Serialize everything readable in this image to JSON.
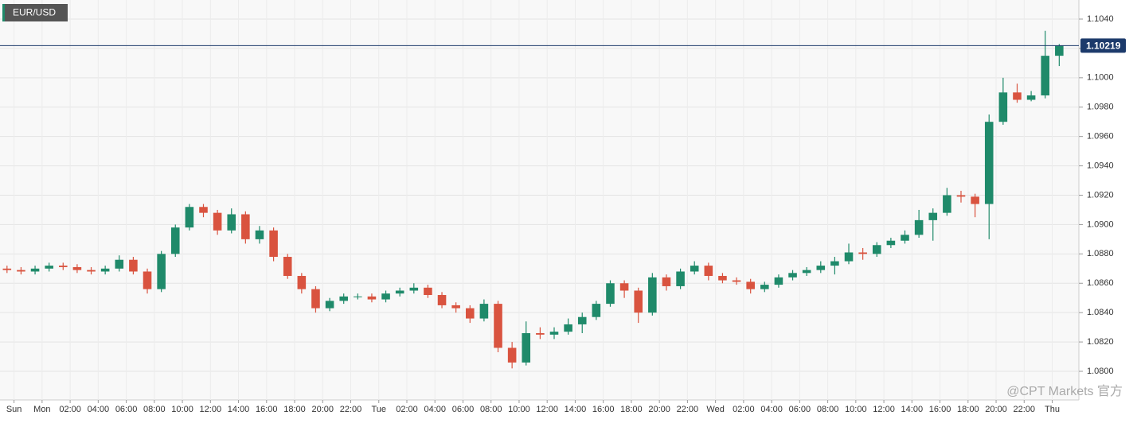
{
  "chart_data": {
    "type": "candlestick",
    "title": "EUR/USD",
    "x": [
      -2.5,
      -1.5,
      -0.5,
      0.5,
      1.5,
      2.5,
      3.5,
      4.5,
      5.5,
      6.5,
      7.5,
      8.5,
      9.5,
      10.5,
      11.5,
      12.5,
      13.5,
      14.5,
      15.5,
      16.5,
      17.5,
      18.5,
      19.5,
      20.5,
      21.5,
      22.5,
      23.5,
      24.5,
      25.5,
      26.5,
      27.5,
      28.5,
      29.5,
      30.5,
      31.5,
      32.5,
      33.5,
      34.5,
      35.5,
      36.5,
      37.5,
      38.5,
      39.5,
      40.5,
      41.5,
      42.5,
      43.5,
      44.5,
      45.5,
      46.5,
      47.5,
      48.5,
      49.5,
      50.5,
      51.5,
      52.5,
      53.5,
      54.5,
      55.5,
      56.5,
      57.5,
      58.5,
      59.5,
      60.5,
      61.5,
      62.5,
      63.5,
      64.5,
      65.5,
      66.5,
      67.5,
      68.5,
      69.5,
      70.5,
      71.5,
      72.5
    ],
    "open": [
      1.087,
      1.0869,
      1.0868,
      1.087,
      1.0872,
      1.0871,
      1.0869,
      1.0868,
      1.087,
      1.0876,
      1.0868,
      1.0856,
      1.088,
      1.0898,
      1.0912,
      1.0908,
      1.0896,
      1.0907,
      1.089,
      1.0896,
      1.0878,
      1.0865,
      1.0856,
      1.0843,
      1.0848,
      1.0851,
      1.0851,
      1.0849,
      1.0853,
      1.0855,
      1.0857,
      1.0852,
      1.0845,
      1.0843,
      1.0836,
      1.0846,
      1.0816,
      1.0806,
      1.0826,
      1.0825,
      1.0827,
      1.0832,
      1.0837,
      1.0846,
      1.086,
      1.0855,
      1.084,
      1.0864,
      1.0858,
      1.0868,
      1.0872,
      1.0865,
      1.0862,
      1.0861,
      1.0856,
      1.0859,
      1.0864,
      1.0867,
      1.0869,
      1.0872,
      1.0875,
      1.0881,
      1.088,
      1.0886,
      1.0889,
      1.0893,
      1.0903,
      1.0908,
      1.092,
      1.0919,
      1.0914,
      1.097,
      1.099,
      1.0985,
      1.0988,
      1.1015
    ],
    "high": [
      1.0872,
      1.0871,
      1.0872,
      1.0874,
      1.0874,
      1.0873,
      1.0871,
      1.0872,
      1.0879,
      1.0878,
      1.087,
      1.0882,
      1.09,
      1.0914,
      1.0914,
      1.091,
      1.0911,
      1.0909,
      1.0899,
      1.0898,
      1.088,
      1.0867,
      1.0858,
      1.085,
      1.0853,
      1.0853,
      1.0853,
      1.0855,
      1.0857,
      1.086,
      1.0859,
      1.0854,
      1.0847,
      1.0845,
      1.0849,
      1.0848,
      1.082,
      1.0834,
      1.083,
      1.083,
      1.0836,
      1.084,
      1.0848,
      1.0862,
      1.0862,
      1.0857,
      1.0867,
      1.0866,
      1.087,
      1.0875,
      1.0874,
      1.0867,
      1.0864,
      1.0863,
      1.0861,
      1.0866,
      1.0869,
      1.0871,
      1.0875,
      1.0878,
      1.0887,
      1.0884,
      1.0888,
      1.0891,
      1.0896,
      1.091,
      1.0911,
      1.0925,
      1.0923,
      1.0921,
      1.0975,
      1.1,
      1.0996,
      1.0991,
      1.1032,
      1.1023
    ],
    "low": [
      1.0867,
      1.0866,
      1.0866,
      1.0868,
      1.0869,
      1.0867,
      1.0866,
      1.0866,
      1.0868,
      1.0866,
      1.0853,
      1.0854,
      1.0878,
      1.0896,
      1.0905,
      1.0893,
      1.0894,
      1.0887,
      1.0887,
      1.0875,
      1.0863,
      1.0853,
      1.084,
      1.0841,
      1.0846,
      1.0849,
      1.0847,
      1.0847,
      1.0851,
      1.0853,
      1.085,
      1.0843,
      1.084,
      1.0833,
      1.0834,
      1.0813,
      1.0802,
      1.0804,
      1.0822,
      1.0822,
      1.0825,
      1.0826,
      1.0835,
      1.0844,
      1.085,
      1.0833,
      1.0838,
      1.0855,
      1.0856,
      1.0866,
      1.0862,
      1.086,
      1.0859,
      1.0853,
      1.0854,
      1.0857,
      1.0862,
      1.0865,
      1.0867,
      1.0866,
      1.0873,
      1.0876,
      1.0878,
      1.0884,
      1.0887,
      1.0891,
      1.0889,
      1.0906,
      1.0915,
      1.0905,
      1.089,
      1.0968,
      1.0983,
      1.0984,
      1.0986,
      1.1008
    ],
    "close": [
      1.0869,
      1.0868,
      1.087,
      1.0872,
      1.0871,
      1.0869,
      1.0868,
      1.087,
      1.0876,
      1.0868,
      1.0856,
      1.088,
      1.0898,
      1.0912,
      1.0908,
      1.0896,
      1.0907,
      1.089,
      1.0896,
      1.0878,
      1.0865,
      1.0856,
      1.0843,
      1.0848,
      1.0851,
      1.0851,
      1.0849,
      1.0853,
      1.0855,
      1.0857,
      1.0852,
      1.0845,
      1.0843,
      1.0836,
      1.0846,
      1.0816,
      1.0806,
      1.0826,
      1.0825,
      1.0827,
      1.0832,
      1.0837,
      1.0846,
      1.086,
      1.0855,
      1.084,
      1.0864,
      1.0858,
      1.0868,
      1.0872,
      1.0865,
      1.0862,
      1.0861,
      1.0856,
      1.0859,
      1.0864,
      1.0867,
      1.0869,
      1.0872,
      1.0875,
      1.0881,
      1.088,
      1.0886,
      1.0889,
      1.0893,
      1.0903,
      1.0908,
      1.092,
      1.0919,
      1.0914,
      1.097,
      1.099,
      1.0985,
      1.0988,
      1.1015,
      1.10219
    ],
    "up_color": "#1f8a6a",
    "down_color": "#d9533f",
    "xlim": [
      -3,
      73.9
    ],
    "ylim": [
      1.07805,
      1.1053
    ],
    "xticks": [
      {
        "value": -2,
        "label": "Sun"
      },
      {
        "value": 0,
        "label": "Mon"
      },
      {
        "value": 2,
        "label": "02:00"
      },
      {
        "value": 4,
        "label": "04:00"
      },
      {
        "value": 6,
        "label": "06:00"
      },
      {
        "value": 8,
        "label": "08:00"
      },
      {
        "value": 10,
        "label": "10:00"
      },
      {
        "value": 12,
        "label": "12:00"
      },
      {
        "value": 14,
        "label": "14:00"
      },
      {
        "value": 16,
        "label": "16:00"
      },
      {
        "value": 18,
        "label": "18:00"
      },
      {
        "value": 20,
        "label": "20:00"
      },
      {
        "value": 22,
        "label": "22:00"
      },
      {
        "value": 24,
        "label": "Tue"
      },
      {
        "value": 26,
        "label": "02:00"
      },
      {
        "value": 28,
        "label": "04:00"
      },
      {
        "value": 30,
        "label": "06:00"
      },
      {
        "value": 32,
        "label": "08:00"
      },
      {
        "value": 34,
        "label": "10:00"
      },
      {
        "value": 36,
        "label": "12:00"
      },
      {
        "value": 38,
        "label": "14:00"
      },
      {
        "value": 40,
        "label": "16:00"
      },
      {
        "value": 42,
        "label": "18:00"
      },
      {
        "value": 44,
        "label": "20:00"
      },
      {
        "value": 46,
        "label": "22:00"
      },
      {
        "value": 48,
        "label": "Wed"
      },
      {
        "value": 50,
        "label": "02:00"
      },
      {
        "value": 52,
        "label": "04:00"
      },
      {
        "value": 54,
        "label": "06:00"
      },
      {
        "value": 56,
        "label": "08:00"
      },
      {
        "value": 58,
        "label": "10:00"
      },
      {
        "value": 60,
        "label": "12:00"
      },
      {
        "value": 62,
        "label": "14:00"
      },
      {
        "value": 64,
        "label": "16:00"
      },
      {
        "value": 66,
        "label": "18:00"
      },
      {
        "value": 68,
        "label": "20:00"
      },
      {
        "value": 70,
        "label": "22:00"
      },
      {
        "value": 72,
        "label": "Thu"
      }
    ],
    "yticks": [
      {
        "value": 1.08,
        "label": "1.0800"
      },
      {
        "value": 1.082,
        "label": "1.0820"
      },
      {
        "value": 1.084,
        "label": "1.0840"
      },
      {
        "value": 1.086,
        "label": "1.0860"
      },
      {
        "value": 1.088,
        "label": "1.0880"
      },
      {
        "value": 1.09,
        "label": "1.0900"
      },
      {
        "value": 1.092,
        "label": "1.0920"
      },
      {
        "value": 1.094,
        "label": "1.0940"
      },
      {
        "value": 1.096,
        "label": "1.0960"
      },
      {
        "value": 1.098,
        "label": "1.0980"
      },
      {
        "value": 1.1,
        "label": "1.1000"
      },
      {
        "value": 1.102,
        "label": "1.1020"
      },
      {
        "value": 1.104,
        "label": "1.1040"
      }
    ],
    "grid": true,
    "last_price": 1.10219,
    "last_price_color": "#1c3a6b"
  },
  "watermark": "@CPT Markets 官方"
}
